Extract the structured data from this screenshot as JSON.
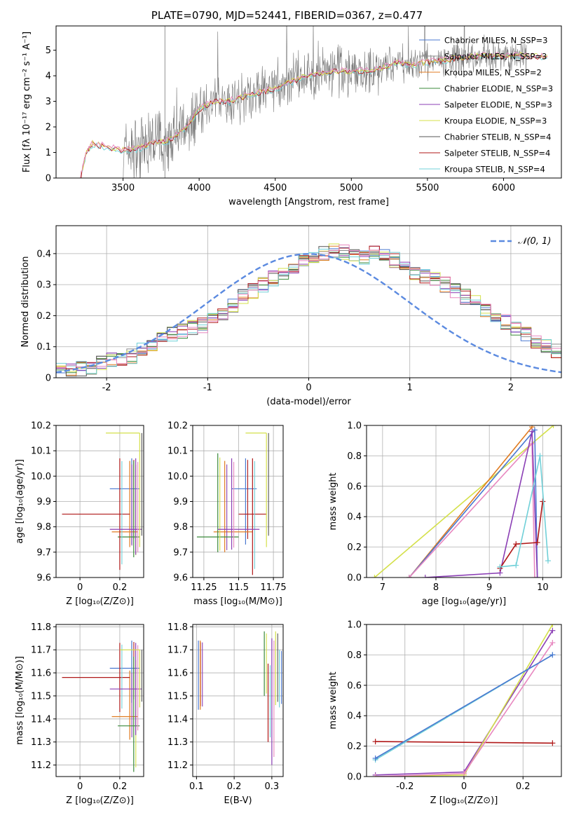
{
  "figure": {
    "title": "PLATE=0790, MJD=52441, FIBERID=0367, z=0.477"
  },
  "chart_data": [
    {
      "id": "spectrum",
      "type": "line",
      "xlabel": "wavelength [Angstrom, rest frame]",
      "ylabel": "Flux [fλ 10⁻¹⁷ erg cm⁻² s⁻¹ A⁻¹]",
      "xlim": [
        3060,
        6380
      ],
      "ylim": [
        0,
        5.95
      ],
      "xticks": [
        3500,
        4000,
        4500,
        5000,
        5500,
        6000
      ],
      "yticks": [
        0,
        1,
        2,
        3,
        4,
        5
      ],
      "legend": "top-right",
      "legend_entries": [
        "Chabrier MILES, N_SSP=3",
        "Salpeter MILES, N_SSP=3",
        "Kroupa MILES, N_SSP=2",
        "Chabrier ELODIE, N_SSP=3",
        "Salpeter ELODIE, N_SSP=3",
        "Kroupa ELODIE, N_SSP=3",
        "Chabrier STELIB, N_SSP=4",
        "Salpeter STELIB, N_SSP=4",
        "Kroupa STELIB, N_SSP=4"
      ],
      "model_continuum": {
        "x": [
          3220,
          3260,
          3300,
          3400,
          3500,
          3600,
          3700,
          3800,
          3900,
          4000,
          4100,
          4200,
          4300,
          4400,
          4500,
          4600,
          4700,
          4800,
          4900,
          5000,
          5100,
          5200,
          5300,
          5400,
          5500,
          5600,
          5700,
          5800,
          5900,
          6000,
          6100,
          6200,
          6300
        ],
        "y": [
          0.0,
          1.0,
          1.35,
          1.2,
          1.1,
          1.15,
          1.4,
          1.45,
          1.9,
          2.7,
          3.0,
          3.0,
          3.2,
          3.35,
          3.5,
          3.75,
          4.0,
          4.1,
          4.2,
          4.15,
          4.2,
          4.3,
          4.5,
          4.4,
          4.55,
          4.6,
          4.7,
          4.75,
          4.8,
          4.75,
          4.8,
          4.75,
          4.7
        ]
      },
      "data_note": "observed spectrum (grey) spans roughly 3500-6150 A with strong noise; model curves overlaid"
    },
    {
      "id": "residuals",
      "type": "line",
      "xlabel": "(data-model)/error",
      "ylabel": "Normed distribution",
      "xlim": [
        -2.5,
        2.5
      ],
      "ylim": [
        0,
        0.49
      ],
      "xticks": [
        -2,
        -1,
        0,
        1,
        2
      ],
      "yticks": [
        0.0,
        0.1,
        0.2,
        0.3,
        0.4
      ],
      "grid": true,
      "legend": "top-right",
      "legend_entry": "𝒩(0, 1)",
      "bin_width": 0.1,
      "bin_start": -2.5,
      "hist_values": [
        0.025,
        0.02,
        0.03,
        0.035,
        0.045,
        0.055,
        0.06,
        0.07,
        0.09,
        0.1,
        0.12,
        0.14,
        0.15,
        0.16,
        0.17,
        0.19,
        0.21,
        0.235,
        0.26,
        0.28,
        0.3,
        0.32,
        0.34,
        0.36,
        0.38,
        0.39,
        0.4,
        0.41,
        0.405,
        0.4,
        0.39,
        0.4,
        0.395,
        0.38,
        0.36,
        0.34,
        0.33,
        0.32,
        0.3,
        0.28,
        0.26,
        0.24,
        0.22,
        0.2,
        0.18,
        0.16,
        0.14,
        0.12,
        0.1,
        0.085,
        0.07
      ]
    },
    {
      "id": "age-vs-Z",
      "type": "scatter",
      "xlabel": "Z [log₁₀(Z/Z⊙)]",
      "ylabel": "age  [log₁₀(age/yr)]",
      "xlim": [
        -0.12,
        0.32
      ],
      "ylim": [
        9.6,
        10.2
      ],
      "xticks": [
        0.0,
        0.2
      ],
      "yticks": [
        9.6,
        9.7,
        9.8,
        9.9,
        10.0,
        10.1,
        10.2
      ],
      "grid": true,
      "points": [
        {
          "x": 0.26,
          "y": 9.95,
          "xerr": [
            0.11,
            0.04
          ],
          "yerr": [
            0.22,
            0.12
          ]
        },
        {
          "x": 0.25,
          "y": 9.78,
          "xerr": [
            0.09,
            0.04
          ],
          "yerr": [
            0.06,
            0.28
          ]
        },
        {
          "x": 0.27,
          "y": 9.76,
          "xerr": [
            0.08,
            0.03
          ],
          "yerr": [
            0.08,
            0.3
          ]
        },
        {
          "x": 0.2,
          "y": 9.85,
          "xerr": [
            0.29,
            0.05
          ],
          "yerr": [
            0.22,
            0.22
          ]
        },
        {
          "x": 0.28,
          "y": 9.79,
          "xerr": [
            0.13,
            0.03
          ],
          "yerr": [
            0.1,
            0.28
          ]
        },
        {
          "x": 0.3,
          "y": 10.17,
          "xerr": [
            0.17,
            0.0
          ],
          "yerr": [
            0.45,
            0.0
          ]
        }
      ]
    },
    {
      "id": "age-vs-mass",
      "type": "scatter",
      "xlabel": "mass [log₁₀(M/M⊙)]",
      "ylabel": "",
      "xlim": [
        11.17,
        11.82
      ],
      "ylim": [
        9.6,
        10.2
      ],
      "xticks": [
        11.25,
        11.5,
        11.75
      ],
      "yticks": [
        9.6,
        9.7,
        9.8,
        9.9,
        10.0,
        10.1,
        10.2
      ],
      "grid": true,
      "points": [
        {
          "x": 11.55,
          "y": 9.95,
          "xerr": [
            0.1,
            0.08
          ],
          "yerr": [
            0.22,
            0.12
          ]
        },
        {
          "x": 11.4,
          "y": 9.78,
          "xerr": [
            0.08,
            0.2
          ],
          "yerr": [
            0.08,
            0.28
          ]
        },
        {
          "x": 11.35,
          "y": 9.76,
          "xerr": [
            0.15,
            0.15
          ],
          "yerr": [
            0.06,
            0.33
          ]
        },
        {
          "x": 11.6,
          "y": 9.85,
          "xerr": [
            0.1,
            0.1
          ],
          "yerr": [
            0.24,
            0.22
          ]
        },
        {
          "x": 11.45,
          "y": 9.79,
          "xerr": [
            0.1,
            0.2
          ],
          "yerr": [
            0.08,
            0.28
          ]
        },
        {
          "x": 11.7,
          "y": 10.17,
          "xerr": [
            0.15,
            0.0
          ],
          "yerr": [
            0.45,
            0.0
          ]
        }
      ]
    },
    {
      "id": "mass-weight-vs-age",
      "type": "line",
      "xlabel": "age  [log₁₀(age/yr)]",
      "ylabel": "mass weight",
      "xlim": [
        6.7,
        10.35
      ],
      "ylim": [
        0,
        1.0
      ],
      "xticks": [
        7,
        8,
        9,
        10
      ],
      "yticks": [
        0.0,
        0.2,
        0.4,
        0.6,
        0.8,
        1.0
      ],
      "grid": true,
      "series": [
        {
          "x": [
            6.85,
            10.2
          ],
          "y": [
            0.0,
            1.0
          ]
        },
        {
          "x": [
            7.5,
            9.8
          ],
          "y": [
            0.0,
            0.99
          ]
        },
        {
          "x": [
            7.5,
            9.85,
            9.9
          ],
          "y": [
            0.0,
            0.97,
            0.0
          ]
        },
        {
          "x": [
            7.5,
            9.8,
            9.85
          ],
          "y": [
            0.0,
            0.88,
            0.0
          ]
        },
        {
          "x": [
            7.8,
            9.2,
            9.8,
            9.9
          ],
          "y": [
            0.0,
            0.03,
            0.96,
            0.0
          ]
        },
        {
          "x": [
            9.2,
            9.5,
            9.9,
            10.0
          ],
          "y": [
            0.06,
            0.22,
            0.23,
            0.5
          ]
        },
        {
          "x": [
            9.2,
            9.5,
            9.95,
            10.1
          ],
          "y": [
            0.07,
            0.08,
            0.8,
            0.11
          ]
        }
      ]
    },
    {
      "id": "mass-vs-Z",
      "type": "scatter",
      "xlabel": "Z [log₁₀(Z/Z⊙)]",
      "ylabel": "mass [log₁₀(M/M⊙)]",
      "xlim": [
        -0.12,
        0.32
      ],
      "ylim": [
        11.15,
        11.81
      ],
      "xticks": [
        0.0,
        0.2
      ],
      "yticks": [
        11.2,
        11.3,
        11.4,
        11.5,
        11.6,
        11.7,
        11.8
      ],
      "grid": true,
      "points": [
        {
          "x": 0.26,
          "y": 11.62,
          "xerr": [
            0.11,
            0.04
          ],
          "yerr": [
            0.15,
            0.12
          ]
        },
        {
          "x": 0.25,
          "y": 11.41,
          "xerr": [
            0.09,
            0.04
          ],
          "yerr": [
            0.1,
            0.2
          ]
        },
        {
          "x": 0.27,
          "y": 11.37,
          "xerr": [
            0.08,
            0.03
          ],
          "yerr": [
            0.2,
            0.3
          ]
        },
        {
          "x": 0.2,
          "y": 11.58,
          "xerr": [
            0.29,
            0.05
          ],
          "yerr": [
            0.15,
            0.15
          ]
        },
        {
          "x": 0.28,
          "y": 11.53,
          "xerr": [
            0.13,
            0.03
          ],
          "yerr": [
            0.2,
            0.2
          ]
        },
        {
          "x": 0.3,
          "y": 11.7,
          "xerr": [
            0.1,
            0.0
          ],
          "yerr": [
            0.25,
            0.0
          ]
        }
      ]
    },
    {
      "id": "mass-vs-ebv",
      "type": "scatter",
      "xlabel": "E(B-V)",
      "ylabel": "",
      "xlim": [
        0.09,
        0.33
      ],
      "ylim": [
        11.15,
        11.81
      ],
      "xticks": [
        0.1,
        0.2,
        0.3
      ],
      "yticks": [
        11.2,
        11.3,
        11.4,
        11.5,
        11.6,
        11.7,
        11.8
      ],
      "grid": true,
      "points": [
        {
          "x": 0.105,
          "y": 11.6,
          "yerr": [
            0.16,
            0.14
          ]
        },
        {
          "x": 0.11,
          "y": 11.58,
          "yerr": [
            0.14,
            0.16
          ]
        },
        {
          "x": 0.28,
          "y": 11.6,
          "yerr": [
            0.1,
            0.18
          ]
        },
        {
          "x": 0.29,
          "y": 11.5,
          "yerr": [
            0.2,
            0.14
          ]
        },
        {
          "x": 0.3,
          "y": 11.55,
          "yerr": [
            0.35,
            0.2
          ]
        },
        {
          "x": 0.31,
          "y": 11.6,
          "yerr": [
            0.14,
            0.18
          ]
        },
        {
          "x": 0.32,
          "y": 11.6,
          "yerr": [
            0.15,
            0.1
          ]
        }
      ]
    },
    {
      "id": "mass-weight-vs-Z",
      "type": "line",
      "xlabel": "Z [log₁₀(Z/Z⊙)]",
      "ylabel": "mass weight",
      "xlim": [
        -0.33,
        0.33
      ],
      "ylim": [
        0,
        1.0
      ],
      "xticks": [
        -0.2,
        0.0,
        0.2
      ],
      "yticks": [
        0.0,
        0.2,
        0.4,
        0.6,
        0.8,
        1.0
      ],
      "grid": true,
      "series": [
        {
          "x": [
            -0.3,
            0.3
          ],
          "y": [
            0.23,
            0.22
          ]
        },
        {
          "x": [
            -0.3,
            0.0,
            0.3
          ],
          "y": [
            0.01,
            0.03,
            0.96
          ]
        },
        {
          "x": [
            -0.3,
            0.0,
            0.3
          ],
          "y": [
            0.0,
            0.01,
            1.0
          ]
        },
        {
          "x": [
            -0.3,
            0.0,
            0.3
          ],
          "y": [
            0.0,
            0.02,
            0.88
          ]
        },
        {
          "x": [
            -0.3,
            0.3
          ],
          "y": [
            0.11,
            0.8
          ]
        },
        {
          "x": [
            -0.3,
            0.3
          ],
          "y": [
            0.12,
            0.8
          ]
        }
      ]
    }
  ]
}
